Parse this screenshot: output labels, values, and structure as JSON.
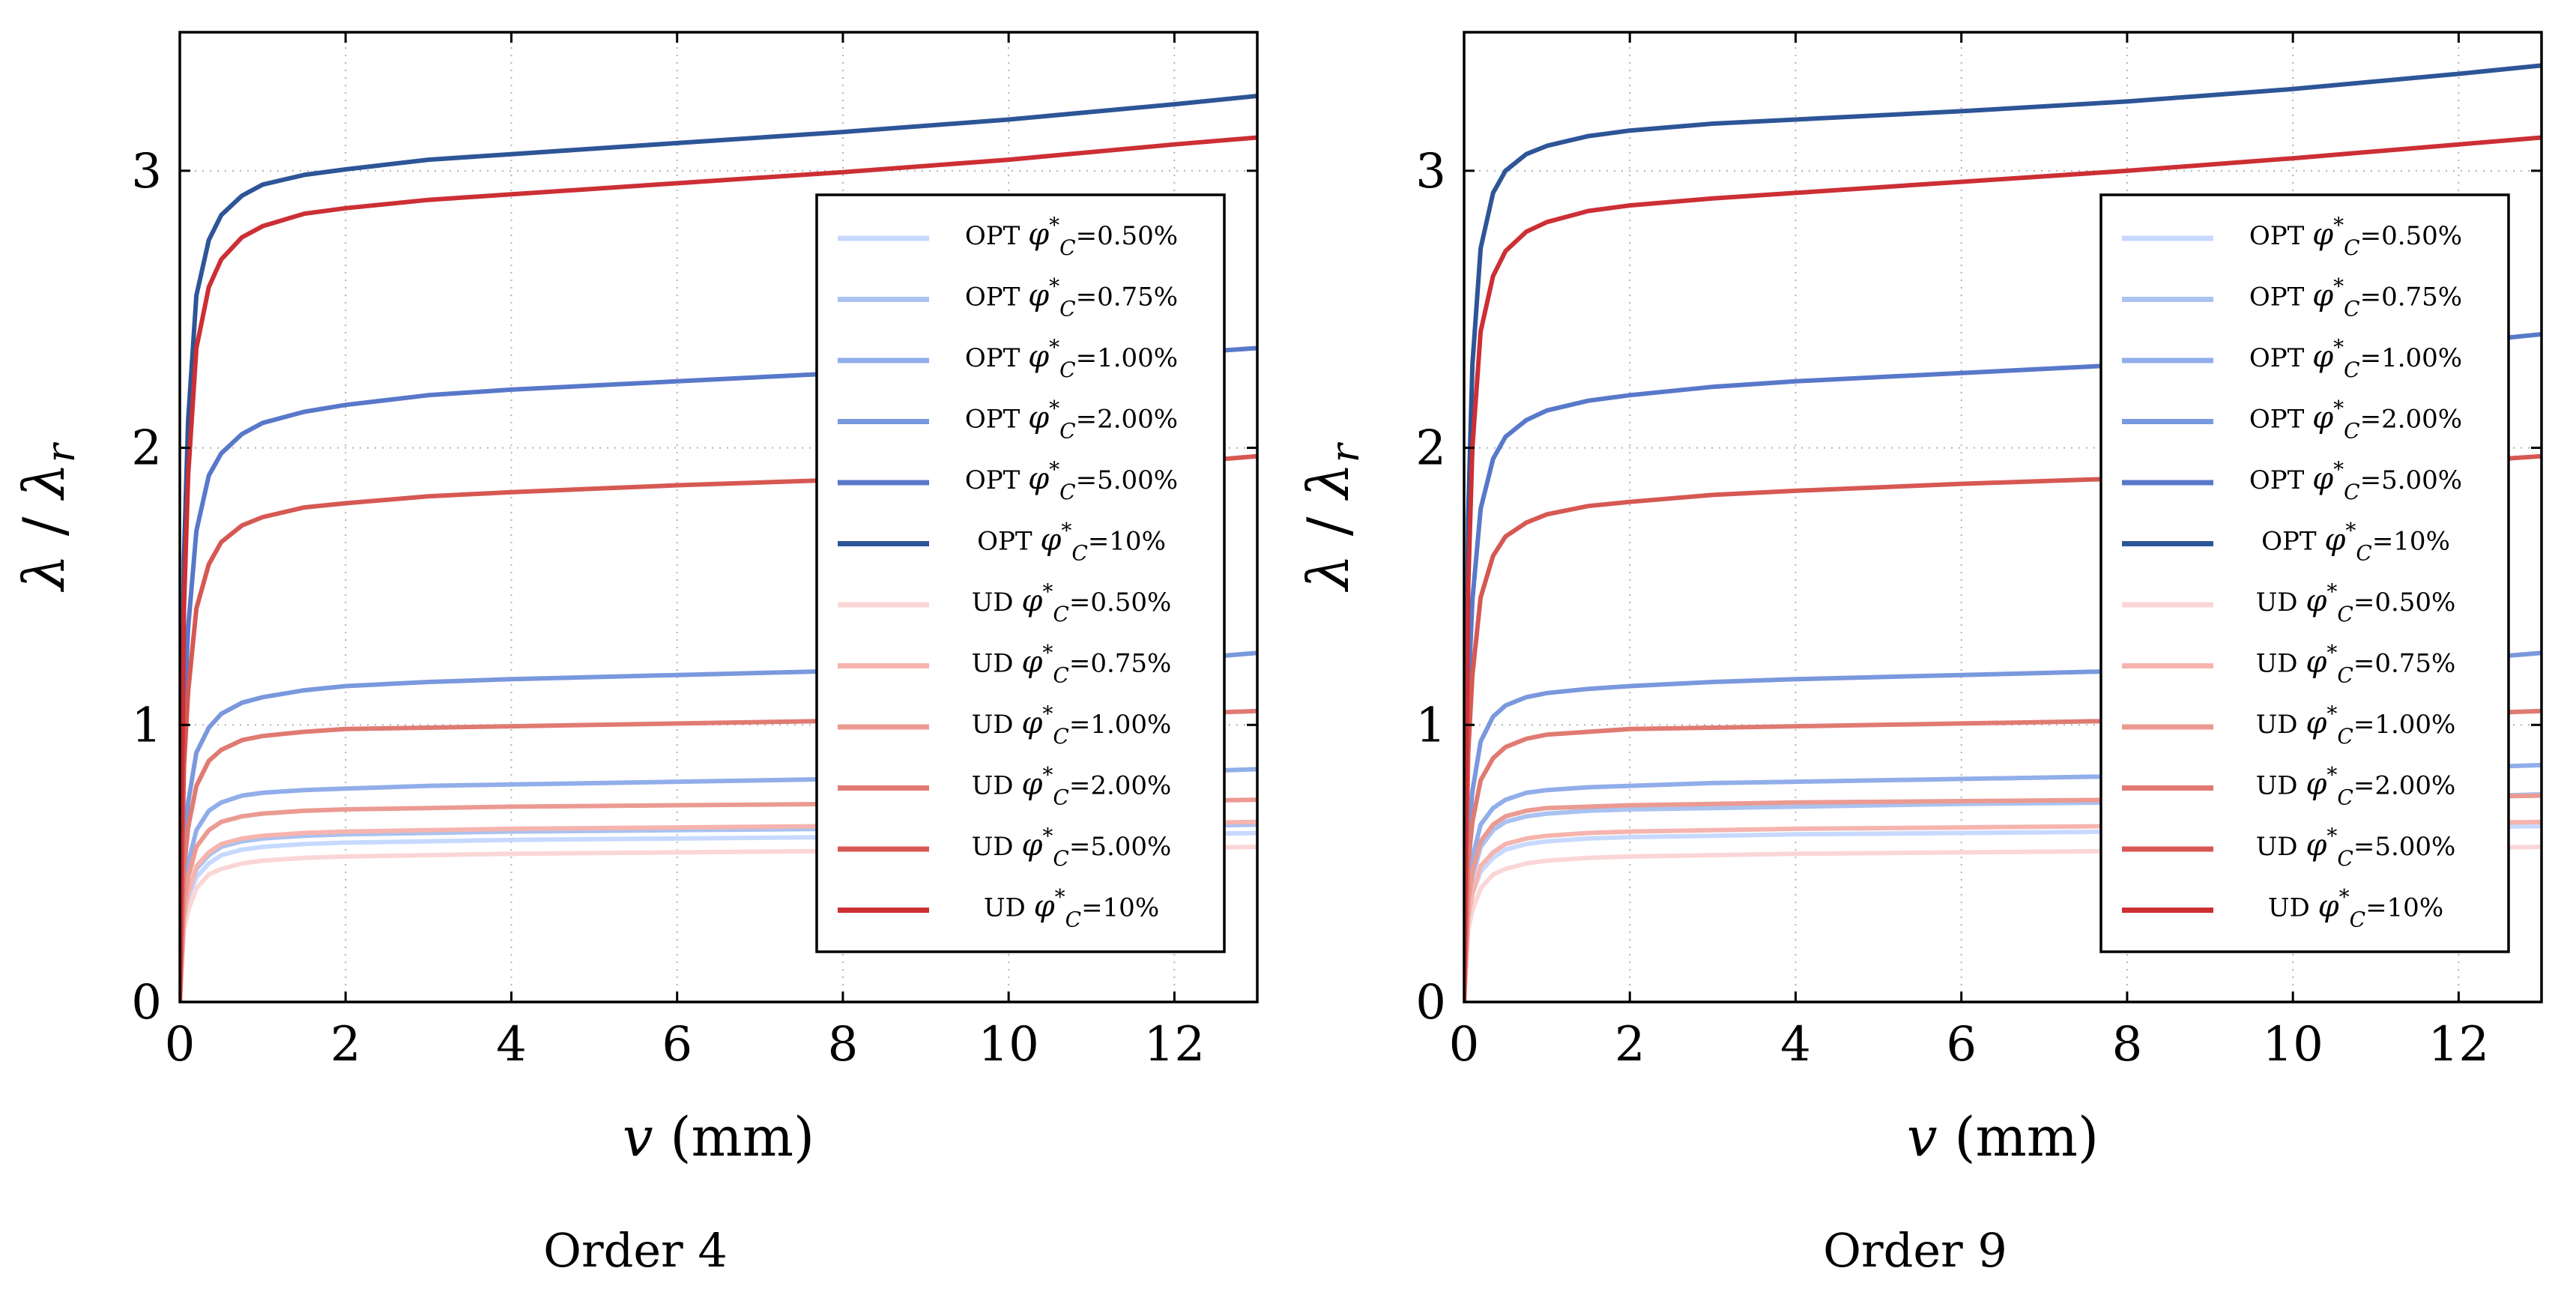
{
  "figure": {
    "captions": [
      "Order 4",
      "Order 9"
    ]
  },
  "chart_data": [
    {
      "type": "line",
      "title": "Order 4",
      "xlabel": "v (mm)",
      "ylabel": "λ / λr",
      "xlim": [
        0,
        13
      ],
      "ylim": [
        0,
        3.5
      ],
      "xticks": [
        0,
        2,
        4,
        6,
        8,
        10,
        12
      ],
      "yticks": [
        0,
        1,
        2,
        3
      ],
      "grid": true,
      "legend_position": "center-right",
      "series": [
        {
          "name": "OPT",
          "phi": "0.50%",
          "color": "#c7d9ff",
          "x": [
            0,
            0.05,
            0.1,
            0.2,
            0.35,
            0.5,
            0.75,
            1,
            1.5,
            2,
            3,
            4,
            6,
            8,
            10,
            12,
            13
          ],
          "values": [
            0,
            0.29,
            0.37,
            0.45,
            0.5,
            0.53,
            0.55,
            0.56,
            0.57,
            0.575,
            0.58,
            0.585,
            0.59,
            0.595,
            0.6,
            0.605,
            0.61
          ]
        },
        {
          "name": "OPT",
          "phi": "0.75%",
          "color": "#a9c2f0",
          "x": [
            0,
            0.05,
            0.1,
            0.2,
            0.35,
            0.5,
            0.75,
            1,
            1.5,
            2,
            3,
            4,
            6,
            8,
            10,
            12,
            13
          ],
          "values": [
            0,
            0.3,
            0.39,
            0.48,
            0.53,
            0.56,
            0.58,
            0.59,
            0.6,
            0.605,
            0.61,
            0.615,
            0.62,
            0.625,
            0.63,
            0.635,
            0.64
          ]
        },
        {
          "name": "OPT",
          "phi": "1.00%",
          "color": "#91aeea",
          "x": [
            0,
            0.05,
            0.1,
            0.2,
            0.35,
            0.5,
            0.75,
            1,
            1.5,
            2,
            3,
            4,
            6,
            8,
            10,
            12,
            13
          ],
          "values": [
            0,
            0.38,
            0.5,
            0.62,
            0.69,
            0.72,
            0.745,
            0.755,
            0.765,
            0.77,
            0.78,
            0.785,
            0.795,
            0.805,
            0.815,
            0.83,
            0.84
          ]
        },
        {
          "name": "OPT",
          "phi": "2.00%",
          "color": "#7a98dd",
          "x": [
            0,
            0.05,
            0.1,
            0.2,
            0.35,
            0.5,
            0.75,
            1,
            1.5,
            2,
            3,
            4,
            6,
            8,
            10,
            12,
            13
          ],
          "values": [
            0,
            0.55,
            0.72,
            0.9,
            0.99,
            1.04,
            1.08,
            1.1,
            1.125,
            1.14,
            1.155,
            1.165,
            1.18,
            1.195,
            1.21,
            1.235,
            1.26
          ]
        },
        {
          "name": "OPT",
          "phi": "5.00%",
          "color": "#5878c9",
          "x": [
            0,
            0.05,
            0.1,
            0.2,
            0.35,
            0.5,
            0.75,
            1,
            1.5,
            2,
            3,
            4,
            6,
            8,
            10,
            12,
            13
          ],
          "values": [
            0,
            1.02,
            1.35,
            1.7,
            1.9,
            1.98,
            2.05,
            2.09,
            2.13,
            2.155,
            2.19,
            2.21,
            2.24,
            2.27,
            2.3,
            2.34,
            2.36
          ]
        },
        {
          "name": "OPT",
          "phi": "10%",
          "color": "#2d5597",
          "x": [
            0,
            0.05,
            0.1,
            0.2,
            0.35,
            0.5,
            0.75,
            1,
            1.5,
            2,
            3,
            4,
            6,
            8,
            10,
            12,
            13
          ],
          "values": [
            0,
            1.6,
            2.1,
            2.55,
            2.75,
            2.84,
            2.91,
            2.95,
            2.985,
            3.005,
            3.04,
            3.06,
            3.1,
            3.14,
            3.185,
            3.24,
            3.27
          ]
        },
        {
          "name": "UD",
          "phi": "0.50%",
          "color": "#fbd6d6",
          "x": [
            0,
            0.05,
            0.1,
            0.2,
            0.35,
            0.5,
            0.75,
            1,
            1.5,
            2,
            3,
            4,
            6,
            8,
            10,
            12,
            13
          ],
          "values": [
            0,
            0.26,
            0.33,
            0.41,
            0.46,
            0.48,
            0.5,
            0.51,
            0.52,
            0.525,
            0.53,
            0.535,
            0.54,
            0.545,
            0.55,
            0.555,
            0.56
          ]
        },
        {
          "name": "UD",
          "phi": "0.75%",
          "color": "#f6b4ae",
          "x": [
            0,
            0.05,
            0.1,
            0.2,
            0.35,
            0.5,
            0.75,
            1,
            1.5,
            2,
            3,
            4,
            6,
            8,
            10,
            12,
            13
          ],
          "values": [
            0,
            0.3,
            0.39,
            0.49,
            0.54,
            0.57,
            0.59,
            0.6,
            0.61,
            0.615,
            0.62,
            0.625,
            0.63,
            0.635,
            0.64,
            0.645,
            0.65
          ]
        },
        {
          "name": "UD",
          "phi": "1.00%",
          "color": "#eb9a92",
          "x": [
            0,
            0.05,
            0.1,
            0.2,
            0.35,
            0.5,
            0.75,
            1,
            1.5,
            2,
            3,
            4,
            6,
            8,
            10,
            12,
            13
          ],
          "values": [
            0,
            0.34,
            0.45,
            0.56,
            0.62,
            0.65,
            0.67,
            0.68,
            0.69,
            0.695,
            0.7,
            0.705,
            0.71,
            0.715,
            0.72,
            0.725,
            0.73
          ]
        },
        {
          "name": "UD",
          "phi": "2.00%",
          "color": "#e07a72",
          "x": [
            0,
            0.05,
            0.1,
            0.2,
            0.35,
            0.5,
            0.75,
            1,
            1.5,
            2,
            3,
            4,
            6,
            8,
            10,
            12,
            13
          ],
          "values": [
            0,
            0.48,
            0.63,
            0.78,
            0.87,
            0.91,
            0.945,
            0.96,
            0.975,
            0.985,
            0.99,
            0.995,
            1.005,
            1.015,
            1.025,
            1.04,
            1.05
          ]
        },
        {
          "name": "UD",
          "phi": "5.00%",
          "color": "#d65853",
          "x": [
            0,
            0.05,
            0.1,
            0.2,
            0.35,
            0.5,
            0.75,
            1,
            1.5,
            2,
            3,
            4,
            6,
            8,
            10,
            12,
            13
          ],
          "values": [
            0,
            0.85,
            1.12,
            1.42,
            1.58,
            1.66,
            1.72,
            1.75,
            1.785,
            1.8,
            1.825,
            1.84,
            1.865,
            1.885,
            1.91,
            1.945,
            1.97
          ]
        },
        {
          "name": "UD",
          "phi": "10%",
          "color": "#cc2f35",
          "x": [
            0,
            0.05,
            0.1,
            0.2,
            0.35,
            0.5,
            0.75,
            1,
            1.5,
            2,
            3,
            4,
            6,
            8,
            10,
            12,
            13
          ],
          "values": [
            0,
            1.42,
            1.9,
            2.36,
            2.58,
            2.68,
            2.76,
            2.8,
            2.845,
            2.865,
            2.895,
            2.915,
            2.955,
            2.995,
            3.04,
            3.095,
            3.12
          ]
        }
      ]
    },
    {
      "type": "line",
      "title": "Order 9",
      "xlabel": "v (mm)",
      "ylabel": "λ / λr",
      "xlim": [
        0,
        13
      ],
      "ylim": [
        0,
        3.5
      ],
      "xticks": [
        0,
        2,
        4,
        6,
        8,
        10,
        12
      ],
      "yticks": [
        0,
        1,
        2,
        3
      ],
      "grid": true,
      "legend_position": "center-right",
      "series": [
        {
          "name": "OPT",
          "phi": "0.50%",
          "color": "#c7d9ff",
          "x": [
            0,
            0.05,
            0.1,
            0.2,
            0.35,
            0.5,
            0.75,
            1,
            1.5,
            2,
            3,
            4,
            6,
            8,
            10,
            12,
            13
          ],
          "values": [
            0,
            0.3,
            0.39,
            0.47,
            0.52,
            0.55,
            0.57,
            0.58,
            0.59,
            0.595,
            0.6,
            0.605,
            0.61,
            0.615,
            0.62,
            0.63,
            0.635
          ]
        },
        {
          "name": "OPT",
          "phi": "0.75%",
          "color": "#a9c2f0",
          "x": [
            0,
            0.05,
            0.1,
            0.2,
            0.35,
            0.5,
            0.75,
            1,
            1.5,
            2,
            3,
            4,
            6,
            8,
            10,
            12,
            13
          ],
          "values": [
            0,
            0.34,
            0.45,
            0.56,
            0.62,
            0.65,
            0.67,
            0.68,
            0.69,
            0.695,
            0.7,
            0.705,
            0.715,
            0.72,
            0.73,
            0.74,
            0.75
          ]
        },
        {
          "name": "OPT",
          "phi": "1.00%",
          "color": "#91aeea",
          "x": [
            0,
            0.05,
            0.1,
            0.2,
            0.35,
            0.5,
            0.75,
            1,
            1.5,
            2,
            3,
            4,
            6,
            8,
            10,
            12,
            13
          ],
          "values": [
            0,
            0.4,
            0.52,
            0.64,
            0.7,
            0.73,
            0.755,
            0.765,
            0.775,
            0.78,
            0.79,
            0.795,
            0.805,
            0.815,
            0.83,
            0.845,
            0.855
          ]
        },
        {
          "name": "OPT",
          "phi": "2.00%",
          "color": "#7a98dd",
          "x": [
            0,
            0.05,
            0.1,
            0.2,
            0.35,
            0.5,
            0.75,
            1,
            1.5,
            2,
            3,
            4,
            6,
            8,
            10,
            12,
            13
          ],
          "values": [
            0,
            0.58,
            0.76,
            0.94,
            1.03,
            1.07,
            1.1,
            1.115,
            1.13,
            1.14,
            1.155,
            1.165,
            1.18,
            1.195,
            1.21,
            1.235,
            1.26
          ]
        },
        {
          "name": "OPT",
          "phi": "5.00%",
          "color": "#5878c9",
          "x": [
            0,
            0.05,
            0.1,
            0.2,
            0.35,
            0.5,
            0.75,
            1,
            1.5,
            2,
            3,
            4,
            6,
            8,
            10,
            12,
            13
          ],
          "values": [
            0,
            1.1,
            1.45,
            1.78,
            1.96,
            2.04,
            2.1,
            2.135,
            2.17,
            2.19,
            2.22,
            2.24,
            2.27,
            2.3,
            2.33,
            2.38,
            2.41
          ]
        },
        {
          "name": "OPT",
          "phi": "10%",
          "color": "#2d5597",
          "x": [
            0,
            0.05,
            0.1,
            0.2,
            0.35,
            0.5,
            0.75,
            1,
            1.5,
            2,
            3,
            4,
            6,
            8,
            10,
            12,
            13
          ],
          "values": [
            0,
            1.75,
            2.3,
            2.72,
            2.92,
            3.0,
            3.06,
            3.09,
            3.125,
            3.145,
            3.17,
            3.185,
            3.215,
            3.25,
            3.295,
            3.35,
            3.38
          ]
        },
        {
          "name": "UD",
          "phi": "0.50%",
          "color": "#fbd6d6",
          "x": [
            0,
            0.05,
            0.1,
            0.2,
            0.35,
            0.5,
            0.75,
            1,
            1.5,
            2,
            3,
            4,
            6,
            8,
            10,
            12,
            13
          ],
          "values": [
            0,
            0.26,
            0.33,
            0.41,
            0.46,
            0.48,
            0.5,
            0.51,
            0.52,
            0.525,
            0.53,
            0.535,
            0.54,
            0.545,
            0.55,
            0.555,
            0.56
          ]
        },
        {
          "name": "UD",
          "phi": "0.75%",
          "color": "#f6b4ae",
          "x": [
            0,
            0.05,
            0.1,
            0.2,
            0.35,
            0.5,
            0.75,
            1,
            1.5,
            2,
            3,
            4,
            6,
            8,
            10,
            12,
            13
          ],
          "values": [
            0,
            0.3,
            0.39,
            0.49,
            0.54,
            0.57,
            0.59,
            0.6,
            0.61,
            0.615,
            0.62,
            0.625,
            0.63,
            0.635,
            0.64,
            0.645,
            0.65
          ]
        },
        {
          "name": "UD",
          "phi": "1.00%",
          "color": "#eb9a92",
          "x": [
            0,
            0.05,
            0.1,
            0.2,
            0.35,
            0.5,
            0.75,
            1,
            1.5,
            2,
            3,
            4,
            6,
            8,
            10,
            12,
            13
          ],
          "values": [
            0,
            0.36,
            0.47,
            0.58,
            0.64,
            0.67,
            0.69,
            0.7,
            0.705,
            0.71,
            0.715,
            0.72,
            0.725,
            0.73,
            0.735,
            0.74,
            0.745
          ]
        },
        {
          "name": "UD",
          "phi": "2.00%",
          "color": "#e07a72",
          "x": [
            0,
            0.05,
            0.1,
            0.2,
            0.35,
            0.5,
            0.75,
            1,
            1.5,
            2,
            3,
            4,
            6,
            8,
            10,
            12,
            13
          ],
          "values": [
            0,
            0.5,
            0.65,
            0.8,
            0.88,
            0.92,
            0.95,
            0.965,
            0.975,
            0.985,
            0.99,
            0.995,
            1.005,
            1.015,
            1.025,
            1.04,
            1.05
          ]
        },
        {
          "name": "UD",
          "phi": "5.00%",
          "color": "#d65853",
          "x": [
            0,
            0.05,
            0.1,
            0.2,
            0.35,
            0.5,
            0.75,
            1,
            1.5,
            2,
            3,
            4,
            6,
            8,
            10,
            12,
            13
          ],
          "values": [
            0,
            0.9,
            1.18,
            1.46,
            1.61,
            1.68,
            1.73,
            1.76,
            1.79,
            1.805,
            1.83,
            1.845,
            1.87,
            1.89,
            1.915,
            1.95,
            1.97
          ]
        },
        {
          "name": "UD",
          "phi": "10%",
          "color": "#cc2f35",
          "x": [
            0,
            0.05,
            0.1,
            0.2,
            0.35,
            0.5,
            0.75,
            1,
            1.5,
            2,
            3,
            4,
            6,
            8,
            10,
            12,
            13
          ],
          "values": [
            0,
            1.5,
            2.0,
            2.42,
            2.62,
            2.71,
            2.78,
            2.815,
            2.855,
            2.875,
            2.9,
            2.92,
            2.96,
            3.0,
            3.045,
            3.095,
            3.12
          ]
        }
      ]
    }
  ]
}
